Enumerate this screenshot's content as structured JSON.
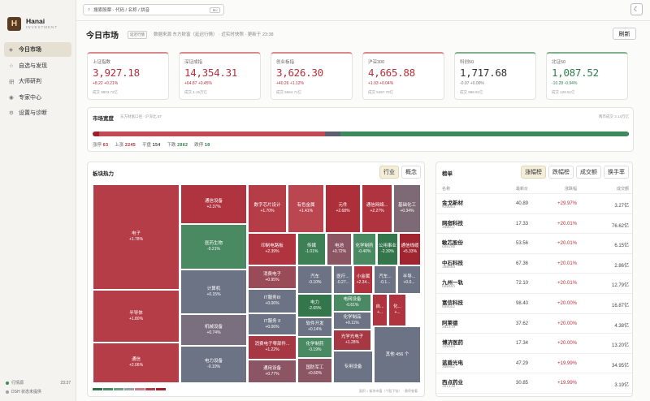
{
  "sidebar": {
    "brand": "Hanai",
    "brand_sub": "INVESTMENT",
    "items": [
      {
        "icon": "◈",
        "label": "今日市场",
        "active": true
      },
      {
        "icon": "☆",
        "label": "自选与发现"
      },
      {
        "icon": "研",
        "label": "大师研判"
      },
      {
        "icon": "◉",
        "label": "专家中心"
      },
      {
        "icon": "⚙",
        "label": "设置与诊断"
      }
    ],
    "status1": "行情源",
    "status1_time": "23:37",
    "status2": "DSH 状态未提供"
  },
  "topbar": {
    "search_placeholder": "搜索股票 · 代码 / 名称 / 拼音",
    "kbd": "⌘K",
    "theme_icon": "☾"
  },
  "header": {
    "title": "今日市场",
    "tag": "延迟行情",
    "meta": "数据来源 东方财富（延迟行情） · 近实时快照 · 更新于 23:38",
    "refresh": "刷新"
  },
  "indices": [
    {
      "name": "上证指数",
      "value": "3,927.18",
      "change": "+8.22  +0.21%",
      "volume": "成交 9903.72亿",
      "dir": "up"
    },
    {
      "name": "深证成指",
      "value": "14,354.31",
      "change": "+64.87  +0.45%",
      "volume": "成交 1.15万亿",
      "dir": "up"
    },
    {
      "name": "创业板指",
      "value": "3,626.30",
      "change": "+40.26  +1.12%",
      "volume": "成交 5564.71亿",
      "dir": "up"
    },
    {
      "name": "沪深300",
      "value": "4,665.88",
      "change": "+1.93  +0.04%",
      "volume": "成交 5497.70亿",
      "dir": "up"
    },
    {
      "name": "科创50",
      "value": "1,717.68",
      "change": "-0.07  +0.00%",
      "volume": "成交 988.91亿",
      "dir": "flat"
    },
    {
      "name": "北证50",
      "value": "1,087.52",
      "change": "-10.28  -0.94%",
      "volume": "成交 128.51亿",
      "dir": "down"
    }
  ],
  "breadth": {
    "title": "市场宽度",
    "sub": "东方财富口径 · 沪深北 5T",
    "right": "两市成交 2.14万亿",
    "limit_up_label": "涨停",
    "limit_up": "63",
    "up_label": "上涨",
    "up": "2245",
    "flat_label": "平盘",
    "flat": "154",
    "down_label": "下跌",
    "down": "2862",
    "limit_down_label": "跌停",
    "limit_down": "10",
    "colors": {
      "limit_up": "#9e1f2a",
      "up": "#c24a54",
      "flat": "#5a6072",
      "down": "#3f8a5c",
      "limit_down": "#2a5c3e"
    }
  },
  "heatmap": {
    "title": "板块热力",
    "tabs": [
      "行业",
      "概念"
    ],
    "note": "面积 = 板块市值（个股下钻） · 悬停查看",
    "tiles": [
      {
        "name": "电子",
        "chg": "+1.78%",
        "color": "#b53d47"
      },
      {
        "name": "半导体",
        "chg": "+1.80%",
        "color": "#b53d47"
      },
      {
        "name": "通信",
        "chg": "+2.06%",
        "color": "#b53d47"
      },
      {
        "name": "通信设备",
        "chg": "+2.37%",
        "color": "#b0343f"
      },
      {
        "name": "医药生物",
        "chg": "-0.21%",
        "color": "#4a8a62"
      },
      {
        "name": "计算机",
        "chg": "+0.15%",
        "color": "#6b7385"
      },
      {
        "name": "机械设备",
        "chg": "+0.74%",
        "color": "#7a6f7f"
      },
      {
        "name": "电力设备",
        "chg": "-0.10%",
        "color": "#6b7385"
      },
      {
        "name": "数字芯片设计",
        "chg": "+1.70%",
        "color": "#b53d47"
      },
      {
        "name": "有色金属",
        "chg": "+1.41%",
        "color": "#ba4650"
      },
      {
        "name": "元件",
        "chg": "+2.68%",
        "color": "#ac2f3a"
      },
      {
        "name": "通信网络...",
        "chg": "+2.27%",
        "color": "#b0343f"
      },
      {
        "name": "基础化工",
        "chg": "+0.34%",
        "color": "#7d6a76"
      },
      {
        "name": "印制电路板",
        "chg": "+2.39%",
        "color": "#b0343f"
      },
      {
        "name": "传媒",
        "chg": "-1.01%",
        "color": "#3d8056"
      },
      {
        "name": "电池",
        "chg": "+0.72%",
        "color": "#8c5563"
      },
      {
        "name": "化学制药",
        "chg": "-0.40%",
        "color": "#4a8a62"
      },
      {
        "name": "公用事业",
        "chg": "-2.30%",
        "color": "#33764c"
      },
      {
        "name": "通信线缆",
        "chg": "+5.33%",
        "color": "#a02530"
      },
      {
        "name": "消费电子",
        "chg": "+0.95%",
        "color": "#9a4b58"
      },
      {
        "name": "汽车",
        "chg": "-0.10%",
        "color": "#6b7385"
      },
      {
        "name": "医疗...",
        "chg": "-0.27...",
        "color": "#6b7385"
      },
      {
        "name": "小金属",
        "chg": "+2.34...",
        "color": "#b0343f"
      },
      {
        "name": "汽车...",
        "chg": "-0.1...",
        "color": "#6b7385"
      },
      {
        "name": "半导...",
        "chg": "+0.0...",
        "color": "#6b7385"
      },
      {
        "name": "IT服务III",
        "chg": "+0.06%",
        "color": "#6b7385"
      },
      {
        "name": "电力",
        "chg": "-2.65%",
        "color": "#33764c"
      },
      {
        "name": "电网设备",
        "chg": "-0.61%",
        "color": "#4a8a62"
      },
      {
        "name": "自...",
        "chg": "+...",
        "color": "#b0343f"
      },
      {
        "name": "化...",
        "chg": "+...",
        "color": "#b0343f"
      },
      {
        "name": "IT服务 II",
        "chg": "+0.06%",
        "color": "#6b7385"
      },
      {
        "name": "软件开发",
        "chg": "+0.14%",
        "color": "#6b7385"
      },
      {
        "name": "化学制品",
        "chg": "+0.11%",
        "color": "#6b7385"
      },
      {
        "name": "消费电子零部件...",
        "chg": "+1.22%",
        "color": "#a63844"
      },
      {
        "name": "化学制药",
        "chg": "-0.19%",
        "color": "#4a8a62"
      },
      {
        "name": "光学光电子",
        "chg": "+1.28%",
        "color": "#a63844"
      },
      {
        "name": "其他 456 个",
        "chg": "",
        "color": "#6b7385"
      },
      {
        "name": "通用设备",
        "chg": "+0.77%",
        "color": "#8c5563"
      },
      {
        "name": "国防军工",
        "chg": "+0.60%",
        "color": "#8c5563"
      },
      {
        "name": "专用设备",
        "chg": "",
        "color": "#6b7385"
      }
    ],
    "legend_colors": [
      "#2e7048",
      "#4a8a62",
      "#6fa07f",
      "#9aa0ad",
      "#c77c85",
      "#b53d47",
      "#9e1f2a"
    ]
  },
  "ranking": {
    "title": "榜单",
    "tabs": [
      "涨幅榜",
      "跌幅榜",
      "成交额",
      "换手率"
    ],
    "headers": {
      "name": "名称",
      "price": "最新价",
      "pct": "涨跌幅",
      "amount": "成交额"
    },
    "rows": [
      {
        "name": "金戈新材",
        "code": "920083",
        "price": "40.89",
        "pct": "+29.97%",
        "amount": "3.27亿"
      },
      {
        "name": "网宿科技",
        "code": "300017",
        "price": "17.33",
        "pct": "+20.01%",
        "amount": "76.62亿"
      },
      {
        "name": "敏芯股份",
        "code": "688286",
        "price": "53.56",
        "pct": "+20.01%",
        "amount": "6.15亿"
      },
      {
        "name": "中石科技",
        "code": "300684",
        "price": "67.36",
        "pct": "+20.01%",
        "amount": "2.86亿"
      },
      {
        "name": "九州一轨",
        "code": "688485",
        "price": "72.10",
        "pct": "+20.01%",
        "amount": "12.79亿"
      },
      {
        "name": "富信科技",
        "code": "688662",
        "price": "98.40",
        "pct": "+20.00%",
        "amount": "16.87亿"
      },
      {
        "name": "阿莱德",
        "code": "301419",
        "price": "37.62",
        "pct": "+20.00%",
        "amount": "4.38亿"
      },
      {
        "name": "博济医药",
        "code": "300404",
        "price": "17.34",
        "pct": "+20.00%",
        "amount": "13.20亿"
      },
      {
        "name": "蓝盾光电",
        "code": "300862",
        "price": "47.29",
        "pct": "+19.99%",
        "amount": "34.95亿"
      },
      {
        "name": "西点药业",
        "code": "301130",
        "price": "30.85",
        "pct": "+19.99%",
        "amount": "3.19亿"
      }
    ]
  }
}
